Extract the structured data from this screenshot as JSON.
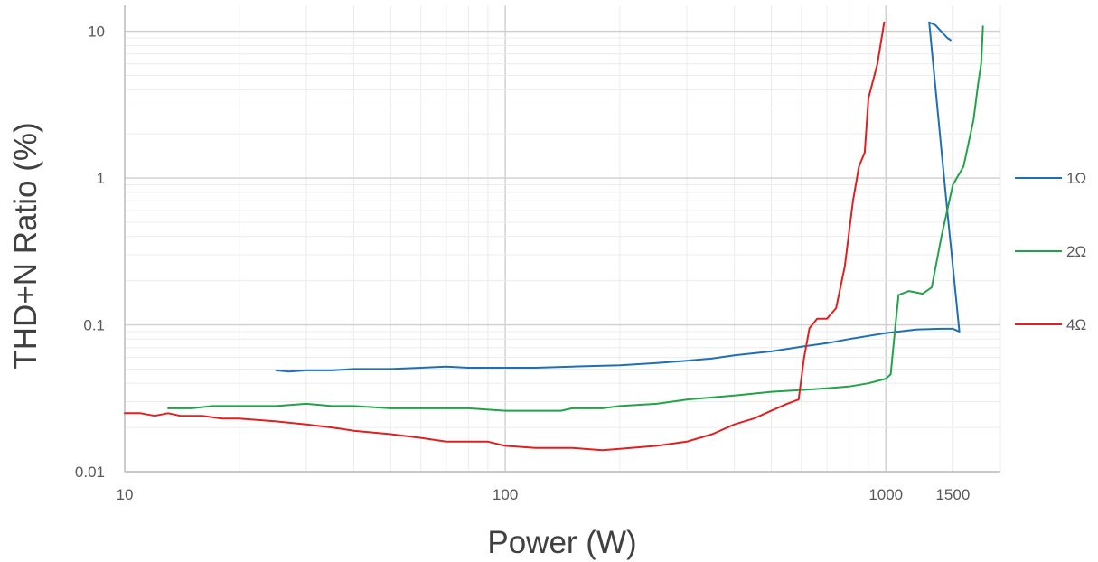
{
  "chart_data": {
    "type": "line",
    "xlabel": "Power (W)",
    "ylabel": "THD+N Ratio (%)",
    "xscale": "log",
    "yscale": "log",
    "xlim": [
      10,
      2000
    ],
    "ylim": [
      0.01,
      15
    ],
    "x_ticks": [
      {
        "value": 10,
        "label": "10"
      },
      {
        "value": 100,
        "label": "100"
      },
      {
        "value": 1000,
        "label": "1000"
      },
      {
        "value": 1500,
        "label": "1500"
      }
    ],
    "y_ticks": [
      {
        "value": 0.01,
        "label": "0.01"
      },
      {
        "value": 0.1,
        "label": "0.1"
      },
      {
        "value": 1,
        "label": "1"
      },
      {
        "value": 10,
        "label": "10"
      }
    ],
    "grid": true,
    "legend": "right",
    "series": [
      {
        "name": "1Ω",
        "color": "#1f6fb4",
        "points": [
          [
            25,
            0.049
          ],
          [
            27,
            0.048
          ],
          [
            30,
            0.049
          ],
          [
            35,
            0.049
          ],
          [
            40,
            0.05
          ],
          [
            50,
            0.05
          ],
          [
            60,
            0.051
          ],
          [
            70,
            0.052
          ],
          [
            80,
            0.051
          ],
          [
            100,
            0.051
          ],
          [
            120,
            0.051
          ],
          [
            150,
            0.052
          ],
          [
            200,
            0.053
          ],
          [
            250,
            0.055
          ],
          [
            300,
            0.057
          ],
          [
            350,
            0.059
          ],
          [
            400,
            0.062
          ],
          [
            500,
            0.066
          ],
          [
            600,
            0.071
          ],
          [
            700,
            0.075
          ],
          [
            800,
            0.08
          ],
          [
            1000,
            0.088
          ],
          [
            1200,
            0.093
          ],
          [
            1400,
            0.094
          ],
          [
            1500,
            0.094
          ],
          [
            1530,
            0.092
          ],
          [
            1560,
            0.09
          ],
          [
            1450,
            0.6
          ],
          [
            1300,
            11.5
          ],
          [
            1350,
            11.0
          ],
          [
            1450,
            9.0
          ],
          [
            1480,
            8.7
          ]
        ]
      },
      {
        "name": "2Ω",
        "color": "#22a34a",
        "points": [
          [
            13,
            0.027
          ],
          [
            15,
            0.027
          ],
          [
            17,
            0.028
          ],
          [
            20,
            0.028
          ],
          [
            25,
            0.028
          ],
          [
            30,
            0.029
          ],
          [
            35,
            0.028
          ],
          [
            40,
            0.028
          ],
          [
            50,
            0.027
          ],
          [
            60,
            0.027
          ],
          [
            70,
            0.027
          ],
          [
            80,
            0.027
          ],
          [
            100,
            0.026
          ],
          [
            120,
            0.026
          ],
          [
            140,
            0.026
          ],
          [
            150,
            0.027
          ],
          [
            180,
            0.027
          ],
          [
            200,
            0.028
          ],
          [
            250,
            0.029
          ],
          [
            300,
            0.031
          ],
          [
            400,
            0.033
          ],
          [
            500,
            0.035
          ],
          [
            600,
            0.036
          ],
          [
            700,
            0.037
          ],
          [
            800,
            0.038
          ],
          [
            900,
            0.04
          ],
          [
            1000,
            0.043
          ],
          [
            1030,
            0.046
          ],
          [
            1060,
            0.1
          ],
          [
            1080,
            0.16
          ],
          [
            1150,
            0.17
          ],
          [
            1250,
            0.163
          ],
          [
            1320,
            0.18
          ],
          [
            1400,
            0.4
          ],
          [
            1500,
            0.9
          ],
          [
            1600,
            1.2
          ],
          [
            1700,
            2.5
          ],
          [
            1750,
            4.5
          ],
          [
            1780,
            6.0
          ],
          [
            1800,
            10.8
          ]
        ]
      },
      {
        "name": "4Ω",
        "color": "#e02020",
        "points": [
          [
            10,
            0.025
          ],
          [
            11,
            0.025
          ],
          [
            12,
            0.024
          ],
          [
            13,
            0.025
          ],
          [
            14,
            0.024
          ],
          [
            16,
            0.024
          ],
          [
            18,
            0.023
          ],
          [
            20,
            0.023
          ],
          [
            25,
            0.022
          ],
          [
            30,
            0.021
          ],
          [
            35,
            0.02
          ],
          [
            40,
            0.019
          ],
          [
            50,
            0.018
          ],
          [
            60,
            0.017
          ],
          [
            70,
            0.016
          ],
          [
            80,
            0.016
          ],
          [
            90,
            0.016
          ],
          [
            100,
            0.015
          ],
          [
            120,
            0.0145
          ],
          [
            150,
            0.0145
          ],
          [
            180,
            0.014
          ],
          [
            200,
            0.0143
          ],
          [
            250,
            0.015
          ],
          [
            300,
            0.016
          ],
          [
            350,
            0.018
          ],
          [
            400,
            0.021
          ],
          [
            450,
            0.023
          ],
          [
            500,
            0.026
          ],
          [
            550,
            0.029
          ],
          [
            590,
            0.031
          ],
          [
            610,
            0.06
          ],
          [
            630,
            0.095
          ],
          [
            660,
            0.11
          ],
          [
            700,
            0.11
          ],
          [
            740,
            0.13
          ],
          [
            780,
            0.25
          ],
          [
            820,
            0.7
          ],
          [
            850,
            1.2
          ],
          [
            880,
            1.5
          ],
          [
            900,
            3.5
          ],
          [
            950,
            6.0
          ],
          [
            990,
            11.5
          ]
        ]
      }
    ]
  }
}
